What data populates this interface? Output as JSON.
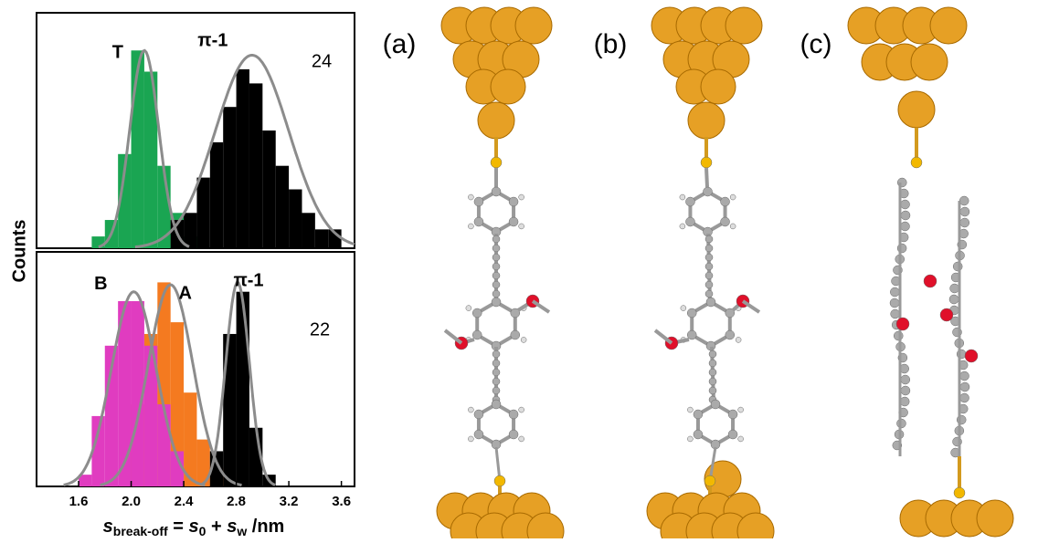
{
  "chart_data": [
    {
      "type": "histogram",
      "annotation": "24",
      "xlim": [
        1.28,
        3.7
      ],
      "ylim": [
        0,
        100
      ],
      "series": [
        {
          "name": "T",
          "color": "#1aa552",
          "bins": [
            1.7,
            1.8,
            1.9,
            2.0,
            2.1,
            2.2,
            2.3,
            2.4,
            2.5
          ],
          "values": [
            5,
            12,
            40,
            84,
            75,
            35,
            15,
            5
          ],
          "fit": {
            "mu": 2.1,
            "sigma": 0.11,
            "peak": 84
          }
        },
        {
          "name": "π-1",
          "color": "#000000",
          "bins": [
            2.3,
            2.4,
            2.5,
            2.6,
            2.7,
            2.8,
            2.9,
            3.0,
            3.1,
            3.2,
            3.3,
            3.4,
            3.5,
            3.6
          ],
          "values": [
            12,
            15,
            30,
            45,
            60,
            76,
            70,
            50,
            35,
            25,
            15,
            8,
            8
          ],
          "fit": {
            "mu": 2.92,
            "sigma": 0.28,
            "peak": 82
          }
        }
      ]
    },
    {
      "type": "histogram",
      "annotation": "22",
      "xlim": [
        1.28,
        3.7
      ],
      "ylim": [
        0,
        100
      ],
      "xticks": [
        1.6,
        {
          "value": 2,
          "label": "2.0"
        },
        2.4,
        2.8,
        3.2,
        3.6
      ],
      "xlabel_parts": [
        "s",
        "break-off",
        " = ",
        "s",
        "0",
        " + ",
        "s",
        "w",
        " /nm"
      ],
      "ylabel": "Counts",
      "series": [
        {
          "name": "A",
          "color": "#f47a20",
          "bins": [
            2.0,
            2.1,
            2.2,
            2.3,
            2.4,
            2.5,
            2.6,
            2.7,
            2.8
          ],
          "values": [
            35,
            65,
            87,
            70,
            40,
            20,
            8,
            4
          ],
          "fit": {
            "mu": 2.3,
            "sigma": 0.17,
            "peak": 86
          }
        },
        {
          "name": "B",
          "color": "#e03cc0",
          "bins": [
            1.6,
            1.7,
            1.8,
            1.9,
            2.0,
            2.1,
            2.2,
            2.3,
            2.4
          ],
          "values": [
            5,
            30,
            60,
            79,
            79,
            60,
            35,
            15
          ],
          "fit": {
            "mu": 2.02,
            "sigma": 0.17,
            "peak": 83
          }
        },
        {
          "name": "π-1",
          "color": "#000000",
          "bins": [
            2.6,
            2.7,
            2.8,
            2.9,
            3.0,
            3.1
          ],
          "values": [
            15,
            65,
            83,
            25,
            5
          ],
          "fit": {
            "mu": 2.81,
            "sigma": 0.09,
            "peak": 87
          }
        }
      ]
    }
  ],
  "panels": {
    "labels": [
      "(a)",
      "(b)",
      "(c)"
    ]
  }
}
